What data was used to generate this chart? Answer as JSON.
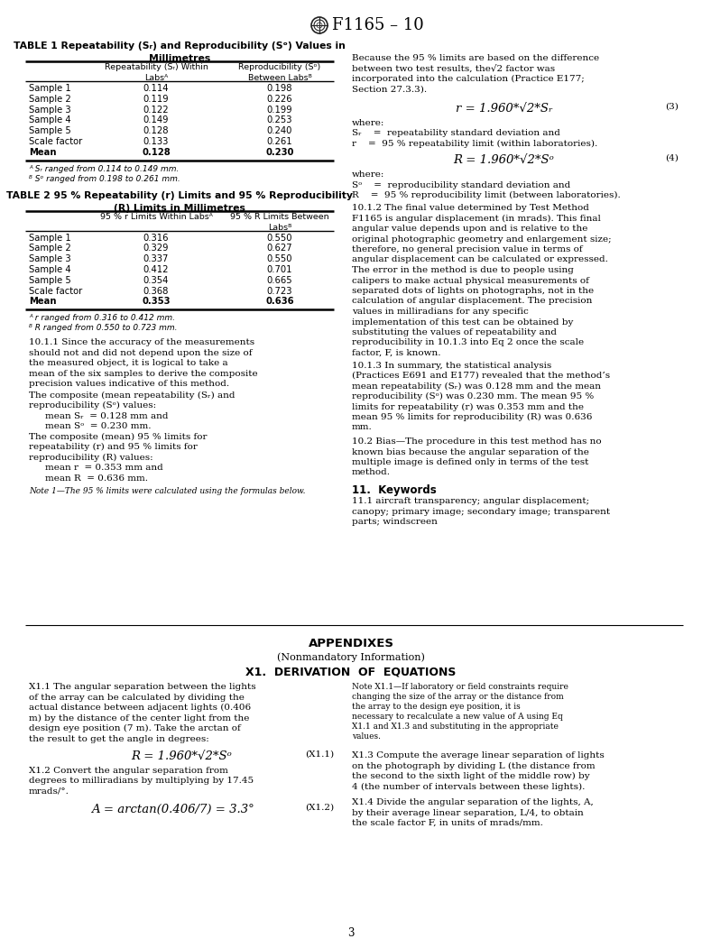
{
  "table1_title": "TABLE 1 Repeatability (Sᵣ) and Reproducibility (Sᵒ) Values in\nMillimetres",
  "table1_col2": "Repeatability (Sᵣ) Within\nLabsᴬ",
  "table1_col3": "Reproducibility (Sᵒ)\nBetween Labsᴮ",
  "table1_rows": [
    [
      "Sample 1",
      "0.114",
      "0.198"
    ],
    [
      "Sample 2",
      "0.119",
      "0.226"
    ],
    [
      "Sample 3",
      "0.122",
      "0.199"
    ],
    [
      "Sample 4",
      "0.149",
      "0.253"
    ],
    [
      "Sample 5",
      "0.128",
      "0.240"
    ],
    [
      "Scale factor",
      "0.133",
      "0.261"
    ],
    [
      "Mean",
      "0.128",
      "0.230"
    ]
  ],
  "table1_fn1": "ᴬ Sᵣ ranged from 0.114 to 0.149 mm.",
  "table1_fn2": "ᴮ Sᵒ ranged from 0.198 to 0.261 mm.",
  "table2_title": "TABLE 2 95 % Repeatability (r) Limits and 95 % Reproducibility\n(R) Limits in Millimetres",
  "table2_col2": "95 % r Limits Within Labsᴬ",
  "table2_col3": "95 % R Limits Between\nLabsᴮ",
  "table2_rows": [
    [
      "Sample 1",
      "0.316",
      "0.550"
    ],
    [
      "Sample 2",
      "0.329",
      "0.627"
    ],
    [
      "Sample 3",
      "0.337",
      "0.550"
    ],
    [
      "Sample 4",
      "0.412",
      "0.701"
    ],
    [
      "Sample 5",
      "0.354",
      "0.665"
    ],
    [
      "Scale factor",
      "0.368",
      "0.723"
    ],
    [
      "Mean",
      "0.353",
      "0.636"
    ]
  ],
  "table2_fn1": "ᴬ r ranged from 0.316 to 0.412 mm.",
  "table2_fn2": "ᴮ R ranged from 0.550 to 0.723 mm.",
  "left_body": [
    {
      "type": "para_indent",
      "text": "10.1.1  Since the accuracy of the measurements should not and did not depend upon the size of the measured object, it is logical to take a mean of the six samples to derive the composite precision values indicative of this method."
    },
    {
      "type": "para",
      "text": "   The composite (mean repeatability (Sᵣ) and reproducibility (Sᵒ) values:"
    },
    {
      "type": "indent",
      "text": "mean Sᵣ  = 0.128 mm and"
    },
    {
      "type": "indent",
      "text": "mean Sᵒ  = 0.230 mm."
    },
    {
      "type": "para",
      "text": "   The composite (mean) 95 % limits for repeatability (r) and 95 % limits for reproducibility (R) values:"
    },
    {
      "type": "indent",
      "text": "mean r  = 0.353 mm and"
    },
    {
      "type": "indent",
      "text": "mean R  = 0.636 mm."
    },
    {
      "type": "note",
      "text": "Note 1—The 95 % limits were calculated using the formulas below."
    }
  ],
  "right_intro": "Because the 95 % limits are based on the difference between two test results, the√2 factor was incorporated into the calculation (Practice E177; Section 27.3.3).",
  "eq3_text": "r = 1.960*√2*Sᵣ",
  "eq3_label": "(3)",
  "where1": "where:",
  "Sr_line": "Sᵣ    =  repeatability standard deviation and",
  "r_line": "r    =  95 % repeatability limit (within laboratories).",
  "eq4_text": "R = 1.960*√2*Sᵒ",
  "eq4_label": "(4)",
  "where2": "where:",
  "SR_line": "Sᵒ    =  reproducibility standard deviation and",
  "R_line": "R    =  95 % reproducibility limit (between laboratories).",
  "sec1012": "10.1.2  The final value determined by Test Method F1165 is angular displacement (in mrads). This final angular value depends upon and is relative to the original photographic geometry and enlargement size; therefore, no general precision value in terms of angular displacement can be calculated or expressed. The error in the method is due to people using calipers to make actual physical measurements of separated dots of lights on photographs, not in the calculation of angular displacement. The precision values in milliradians for any specific implementation of this test can be obtained by substituting the values of repeatability and reproducibility in 10.1.3 into Eq 2 once the scale factor, F, is known.",
  "sec1013": "10.1.3  In summary, the statistical analysis (Practices E691 and E177) revealed that the method’s mean repeatability (Sᵣ) was 0.128 mm and the mean reproducibility (Sᵒ) was 0.230 mm. The mean 95 % limits for repeatability (r) was 0.353 mm and the mean 95 % limits for reproducibility (R) was 0.636 mm.",
  "sec102": "10.2  Bias—The procedure in this test method has no known bias because the angular separation of the multiple image is defined only in terms of the test method.",
  "kw_title": "11.  Keywords",
  "kw_text": "11.1  aircraft transparency; angular displacement; canopy; primary image; secondary image; transparent parts; windscreen",
  "appendix_title": "APPENDIXES",
  "appendix_sub": "(Nonmandatory Information)",
  "x1_title": "X1.  DERIVATION  OF  EQUATIONS",
  "x11_text": "X1.1  The angular separation between the lights of the array can be calculated by dividing the actual distance between adjacent lights (0.406 m) by the distance of the center light from the design eye position (7 m). Take the arctan of the result to get the angle in degrees:",
  "x11_eq": "R = 1.960*√2*Sᵒ",
  "x11_label": "(X1.1)",
  "x12_text": "X1.2  Convert the angular separation from degrees to milliradians by multiplying by 17.45 mrads/°.",
  "x12_eq": "A = arctan(0.406/7) = 3.3°",
  "x12_label": "(X1.2)",
  "note_x11": "Note X1.1—If laboratory or field constraints require changing the size of the array or the distance from the array to the design eye position, it is necessary to recalculate a new value of A using Eq X1.1 and X1.3 and substituting in the appropriate values.",
  "x13_text": "X1.3  Compute the average linear separation of lights on the photograph by dividing L (the distance from the second to the sixth light of the middle row) by 4 (the number of intervals between these lights).",
  "x14_text": "X1.4  Divide the angular separation of the lights, A, by their average linear separation, L/4, to obtain the scale factor F, in units of mrads/mm.",
  "page_num": "3"
}
